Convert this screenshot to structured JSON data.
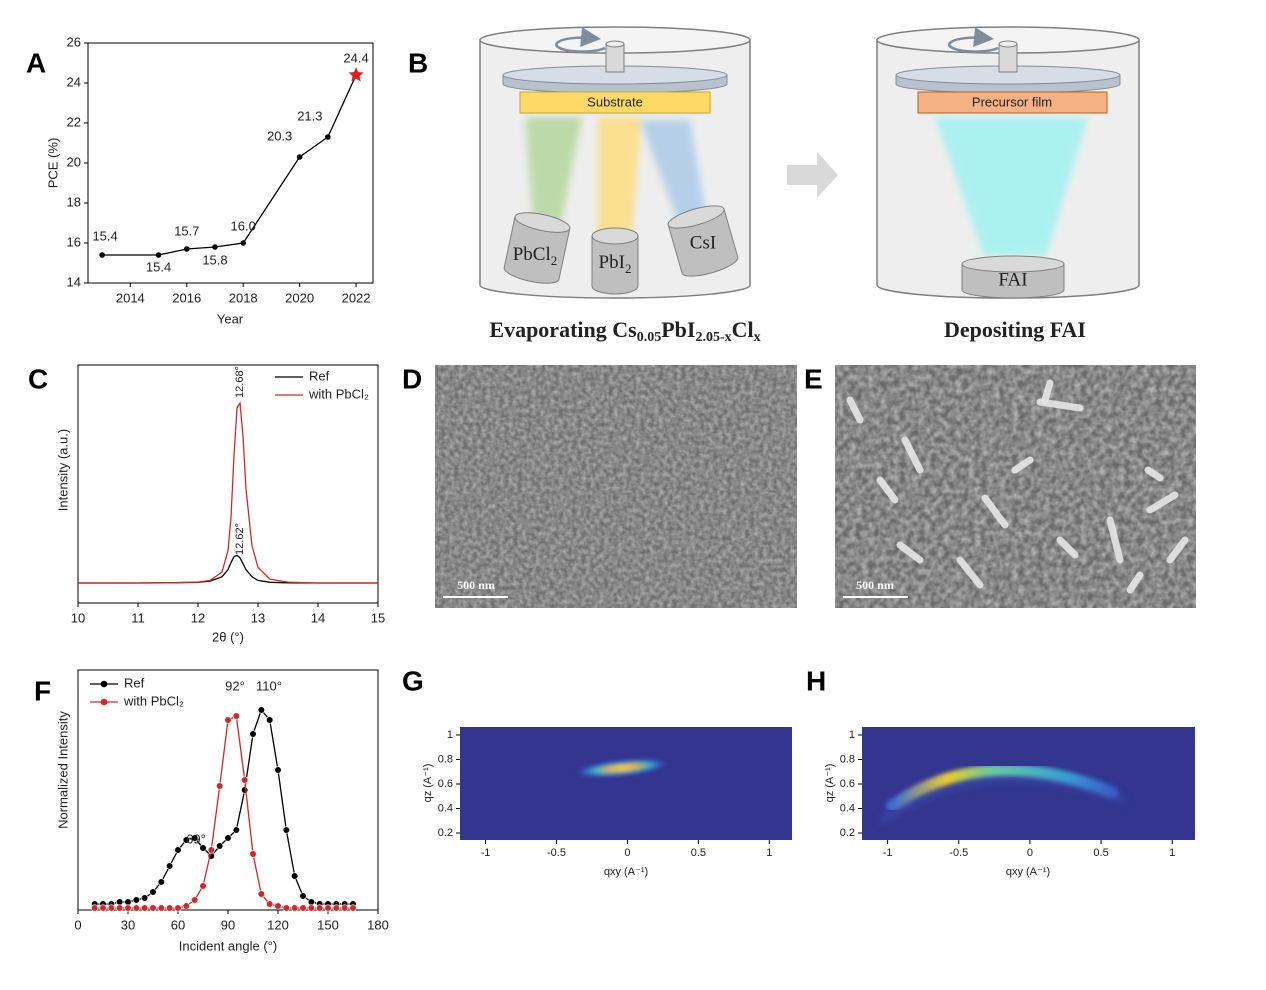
{
  "panel_labels": [
    "A",
    "B",
    "C",
    "D",
    "E",
    "F",
    "G",
    "H"
  ],
  "diagram": {
    "substrate": "Substrate",
    "sources": [
      [
        "PbCl",
        "2"
      ],
      [
        "PbI",
        "2"
      ],
      [
        "CsI"
      ]
    ],
    "precursor": "Precursor film",
    "fai": "FAI",
    "caption_left": [
      "Evaporating Cs",
      "0.05",
      "PbI",
      "2.05-x",
      "Cl",
      "x"
    ],
    "caption_right": "Depositing FAI"
  },
  "sem": {
    "scale_bar_d": "500 nm",
    "scale_bar_e": "500 nm"
  },
  "chart_data": [
    {
      "type": "line",
      "x_label": "Year",
      "y_label": "PCE (%)",
      "x": [
        2013,
        2015,
        2016,
        2017,
        2018,
        2020,
        2021,
        2022
      ],
      "values": [
        15.4,
        15.4,
        15.7,
        15.8,
        16.0,
        20.3,
        21.3,
        24.4
      ],
      "value_labels": [
        "15.4",
        "15.4",
        "15.7",
        "15.8",
        "16.0",
        "20.3",
        "21.3",
        "24.4"
      ],
      "color": "#000000",
      "highlight_color": "#e41a1c",
      "xlim": [
        2012.5,
        2022.6
      ],
      "xticks": [
        2014,
        2016,
        2018,
        2020,
        2022
      ],
      "ylim": [
        14,
        26
      ],
      "yticks": [
        14,
        16,
        18,
        20,
        22,
        24,
        26
      ]
    },
    {
      "type": "line",
      "x_label": "2θ (°)",
      "y_label": "Intensity (a.u.)",
      "x": [
        10,
        11,
        11.5,
        12,
        12.2,
        12.4,
        12.5,
        12.55,
        12.6,
        12.65,
        12.7,
        12.75,
        12.8,
        12.9,
        13,
        13.2,
        13.5,
        14,
        15
      ],
      "series": [
        {
          "name": "Ref",
          "color": "#000000",
          "values": [
            0.084,
            0.084,
            0.085,
            0.087,
            0.092,
            0.11,
            0.14,
            0.17,
            0.195,
            0.2,
            0.19,
            0.165,
            0.14,
            0.11,
            0.095,
            0.087,
            0.085,
            0.084,
            0.084
          ]
        },
        {
          "name": "with PbCl₂",
          "color": "#d62728",
          "values": [
            0.084,
            0.084,
            0.085,
            0.088,
            0.095,
            0.13,
            0.22,
            0.36,
            0.62,
            0.82,
            0.84,
            0.7,
            0.48,
            0.24,
            0.15,
            0.1,
            0.088,
            0.084,
            0.084
          ]
        }
      ],
      "annotations": [
        "12.68°",
        "12.62°"
      ],
      "xlim": [
        10,
        15
      ],
      "xticks": [
        10,
        11,
        12,
        13,
        14,
        15
      ],
      "ylim": [
        0,
        1
      ]
    },
    {
      "type": "line",
      "markers": true,
      "x_label": "Incident angle (°)",
      "y_label": "Normalized Intensity",
      "x": [
        10,
        15,
        20,
        25,
        30,
        35,
        40,
        45,
        50,
        55,
        60,
        65,
        70,
        75,
        80,
        85,
        90,
        95,
        100,
        105,
        110,
        115,
        120,
        125,
        130,
        135,
        140,
        145,
        150,
        155,
        160,
        165
      ],
      "series": [
        {
          "name": "Ref",
          "color": "#000000",
          "values": [
            0.03,
            0.03,
            0.03,
            0.04,
            0.04,
            0.05,
            0.06,
            0.09,
            0.14,
            0.22,
            0.3,
            0.35,
            0.36,
            0.31,
            0.27,
            0.32,
            0.36,
            0.4,
            0.6,
            0.88,
            1.0,
            0.95,
            0.7,
            0.4,
            0.17,
            0.07,
            0.04,
            0.03,
            0.03,
            0.03,
            0.03,
            0.03
          ]
        },
        {
          "name": "with PbCl₂",
          "color": "#d62728",
          "values": [
            0.01,
            0.01,
            0.01,
            0.01,
            0.01,
            0.01,
            0.01,
            0.01,
            0.01,
            0.01,
            0.01,
            0.02,
            0.05,
            0.12,
            0.3,
            0.62,
            0.95,
            0.97,
            0.65,
            0.28,
            0.08,
            0.03,
            0.02,
            0.01,
            0.01,
            0.01,
            0.01,
            0.01,
            0.01,
            0.01,
            0.01,
            0.01
          ]
        }
      ],
      "annotations": [
        "69°",
        "92°",
        "110°"
      ],
      "xlim": [
        0,
        180
      ],
      "xticks": [
        0,
        30,
        60,
        90,
        120,
        150,
        180
      ],
      "ylim": [
        0,
        1.2
      ]
    },
    {
      "type": "heatmap",
      "x_label": "qxy (A⁻¹)",
      "y_label": "qz (A⁻¹)",
      "xlim": [
        -1.18,
        1.16
      ],
      "xticks": [
        -1,
        -0.5,
        0,
        0.5,
        1
      ],
      "ylim": [
        0.143,
        1.065
      ],
      "yticks": [
        0.2,
        0.4,
        0.6,
        0.8,
        1
      ]
    },
    {
      "type": "heatmap",
      "x_label": "qxy (A⁻¹)",
      "y_label": "qz (A⁻¹)",
      "xlim": [
        -1.18,
        1.16
      ],
      "xticks": [
        -1,
        -0.5,
        0,
        0.5,
        1
      ],
      "ylim": [
        0.143,
        1.065
      ],
      "yticks": [
        0.2,
        0.4,
        0.6,
        0.8,
        1
      ]
    }
  ]
}
